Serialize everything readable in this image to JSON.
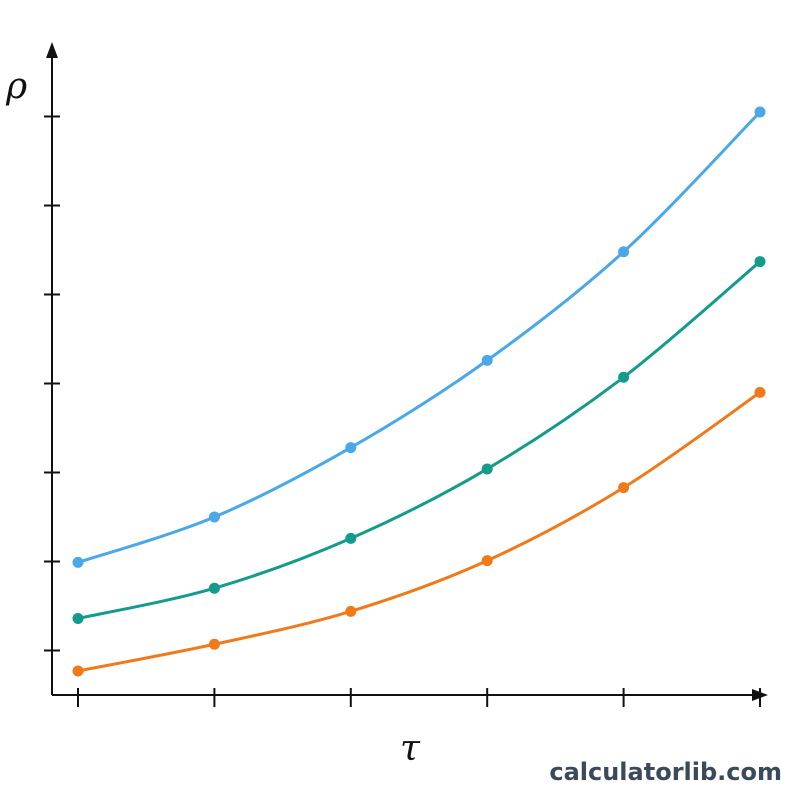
{
  "chart_data": {
    "type": "line",
    "title": "",
    "xlabel": "τ",
    "ylabel": "ρ",
    "x": [
      0,
      1,
      2,
      3,
      4,
      5
    ],
    "xlim": [
      0,
      5
    ],
    "ylim": [
      0,
      6.5
    ],
    "grid": false,
    "legend": "none",
    "series": [
      {
        "color": "#4aa8e8",
        "values": [
          1.49,
          2.0,
          2.78,
          3.76,
          4.98,
          6.55
        ]
      },
      {
        "color": "#139b8c",
        "values": [
          0.86,
          1.2,
          1.76,
          2.54,
          3.57,
          4.87
        ]
      },
      {
        "color": "#f07a1a",
        "values": [
          0.27,
          0.57,
          0.94,
          1.51,
          2.33,
          3.4
        ]
      }
    ]
  },
  "watermark": "calculatorlib.com"
}
